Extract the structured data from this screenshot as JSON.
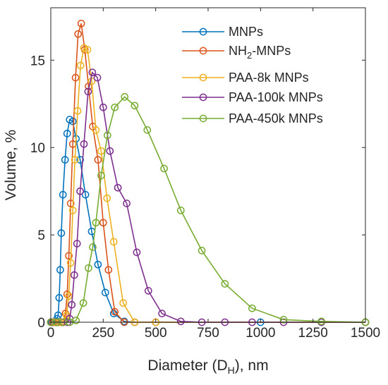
{
  "chart_data": {
    "type": "line",
    "title": "",
    "xlabel": "Diameter (D",
    "xlabel_sub": "H",
    "xlabel_tail": "), nm",
    "ylabel": "Volume, %",
    "xlim": [
      0,
      1500
    ],
    "ylim": [
      0,
      18
    ],
    "xticks": [
      "0",
      "250",
      "500",
      "750",
      "1000",
      "1250",
      "1500"
    ],
    "yticks": [
      "0",
      "5",
      "10",
      "15"
    ],
    "grid": false,
    "legend_position": "top-right",
    "marker": "open-circle",
    "series": [
      {
        "name": "MNPs",
        "color": "#0072BD",
        "x": [
          0,
          5,
          10,
          15,
          20,
          25,
          30,
          35,
          40,
          45,
          50,
          58,
          68,
          78,
          90,
          105,
          120,
          140,
          165,
          195,
          225,
          260,
          300,
          350,
          400,
          500,
          1000,
          1500
        ],
        "y": [
          0,
          0,
          0,
          0,
          0,
          0.05,
          0.2,
          0.4,
          1.4,
          3.0,
          5.1,
          7.3,
          9.3,
          10.8,
          11.6,
          11.5,
          10.5,
          9.3,
          7.3,
          5.2,
          3.3,
          1.7,
          0.5,
          0.05,
          0,
          0,
          0,
          0
        ]
      },
      {
        "name": "NH2-MNPs",
        "name_main": "NH",
        "name_sub": "2",
        "name_tail": "-MNPs",
        "color": "#D95319",
        "x": [
          0,
          10,
          20,
          30,
          40,
          50,
          60,
          70,
          78,
          86,
          95,
          105,
          118,
          130,
          145,
          162,
          180,
          200,
          225,
          250,
          275,
          305,
          350,
          400,
          500,
          1500
        ],
        "y": [
          0,
          0,
          0,
          0,
          0,
          0,
          0,
          0.5,
          1.6,
          3.8,
          6.8,
          10.2,
          14.0,
          16.5,
          17.1,
          15.6,
          13.5,
          11.2,
          9.3,
          5.7,
          3.0,
          0.6,
          0,
          0,
          0,
          0
        ]
      },
      {
        "name": "PAA-8k MNPs",
        "color": "#EDB120",
        "x": [
          0,
          20,
          40,
          60,
          75,
          85,
          95,
          105,
          115,
          128,
          142,
          158,
          175,
          195,
          215,
          240,
          268,
          300,
          345,
          400,
          500,
          1500
        ],
        "y": [
          0,
          0,
          0,
          0,
          0.4,
          1.5,
          3.4,
          6.4,
          9.3,
          12.1,
          14.7,
          15.7,
          15.6,
          13.8,
          11.0,
          9.8,
          7.1,
          4.6,
          1.1,
          0,
          0,
          0
        ]
      },
      {
        "name": "PAA-100k MNPs",
        "color": "#7E2F8E",
        "x": [
          0,
          30,
          60,
          80,
          90,
          100,
          112,
          125,
          140,
          158,
          178,
          198,
          222,
          250,
          282,
          320,
          362,
          410,
          465,
          530,
          620,
          720,
          830,
          960,
          1110,
          1290,
          1500
        ],
        "y": [
          0,
          0,
          0,
          0,
          0.2,
          1.0,
          2.7,
          4.5,
          7.5,
          10.2,
          13.2,
          14.3,
          14.0,
          12.3,
          9.8,
          7.7,
          6.8,
          4.0,
          1.8,
          0.5,
          0.05,
          0,
          0,
          0,
          0,
          0,
          0
        ]
      },
      {
        "name": "PAA-450k MNPs",
        "color": "#77AC30",
        "x": [
          0,
          30,
          60,
          90,
          120,
          155,
          180,
          200,
          215,
          240,
          270,
          305,
          352,
          400,
          460,
          540,
          620,
          720,
          830,
          960,
          1110,
          1290,
          1500
        ],
        "y": [
          0,
          0,
          0,
          0,
          0.1,
          1.1,
          3.1,
          4.3,
          5.7,
          8.4,
          10.7,
          12.3,
          12.9,
          12.4,
          11.0,
          8.8,
          6.4,
          4.1,
          2.2,
          0.8,
          0.15,
          0.05,
          0
        ]
      }
    ]
  }
}
